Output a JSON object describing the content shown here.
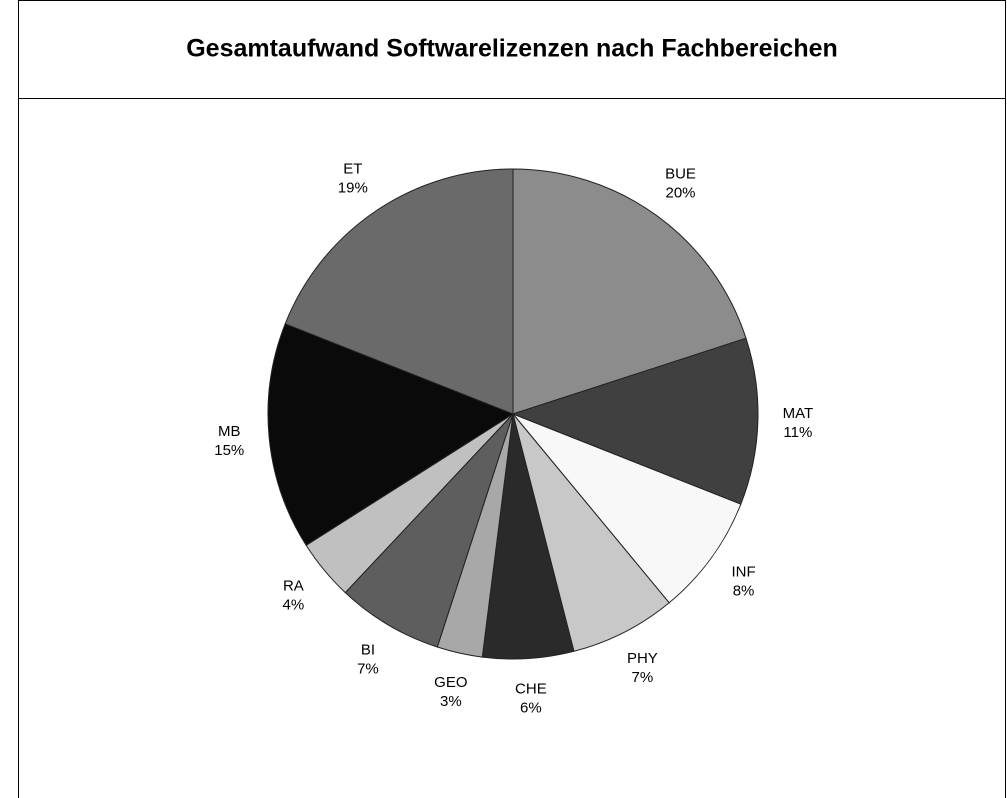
{
  "chart_data": {
    "type": "pie",
    "title": "Gesamtaufwand Softwarelizenzen nach Fachbereichen",
    "categories": [
      "BUE",
      "MAT",
      "INF",
      "PHY",
      "CHE",
      "GEO",
      "BI",
      "RA",
      "MB",
      "ET"
    ],
    "values": [
      20,
      11,
      8,
      7,
      6,
      3,
      7,
      4,
      15,
      19
    ],
    "value_labels": [
      "20%",
      "11%",
      "8%",
      "7%",
      "6%",
      "3%",
      "7%",
      "4%",
      "15%",
      "19%"
    ],
    "colors": [
      "#8c8c8c",
      "#404040",
      "#f8f8f8",
      "#c8c8c8",
      "#2a2a2a",
      "#a8a8a8",
      "#5e5e5e",
      "#c0c0c0",
      "#0a0a0a",
      "#6a6a6a"
    ]
  }
}
